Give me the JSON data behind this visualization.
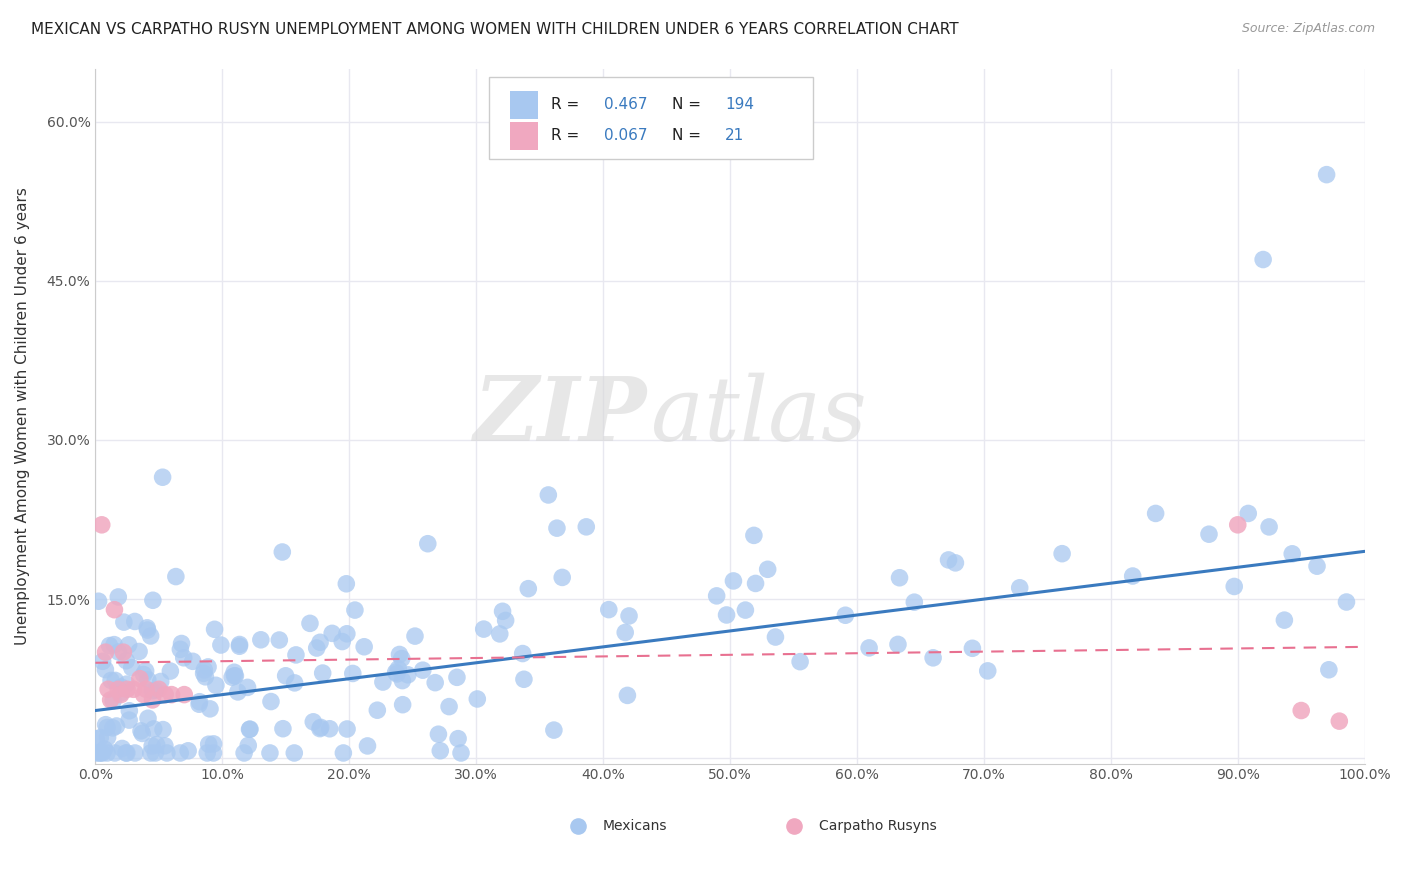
{
  "title": "MEXICAN VS CARPATHO RUSYN UNEMPLOYMENT AMONG WOMEN WITH CHILDREN UNDER 6 YEARS CORRELATION CHART",
  "source": "Source: ZipAtlas.com",
  "ylabel": "Unemployment Among Women with Children Under 6 years",
  "xlim": [
    0,
    1.0
  ],
  "ylim": [
    -0.005,
    0.65
  ],
  "xticks": [
    0.0,
    0.1,
    0.2,
    0.3,
    0.4,
    0.5,
    0.6,
    0.7,
    0.8,
    0.9,
    1.0
  ],
  "xticklabels": [
    "0.0%",
    "10.0%",
    "20.0%",
    "30.0%",
    "40.0%",
    "50.0%",
    "60.0%",
    "70.0%",
    "80.0%",
    "90.0%",
    "100.0%"
  ],
  "yticks": [
    0.0,
    0.15,
    0.3,
    0.45,
    0.6
  ],
  "yticklabels": [
    "",
    "15.0%",
    "30.0%",
    "45.0%",
    "60.0%"
  ],
  "mexican_R": 0.467,
  "mexican_N": 194,
  "rusyn_R": 0.067,
  "rusyn_N": 21,
  "mexican_color": "#a8c8f0",
  "rusyn_color": "#f0a8c0",
  "trend_mexican_color": "#3a7abf",
  "trend_rusyn_color": "#e87090",
  "watermark_zip": "ZIP",
  "watermark_atlas": "atlas",
  "background_color": "#ffffff",
  "grid_color": "#e8e8f0",
  "mexican_trend_start_y": 0.045,
  "mexican_trend_end_y": 0.195,
  "rusyn_trend_start_y": 0.09,
  "rusyn_trend_end_y": 0.105
}
